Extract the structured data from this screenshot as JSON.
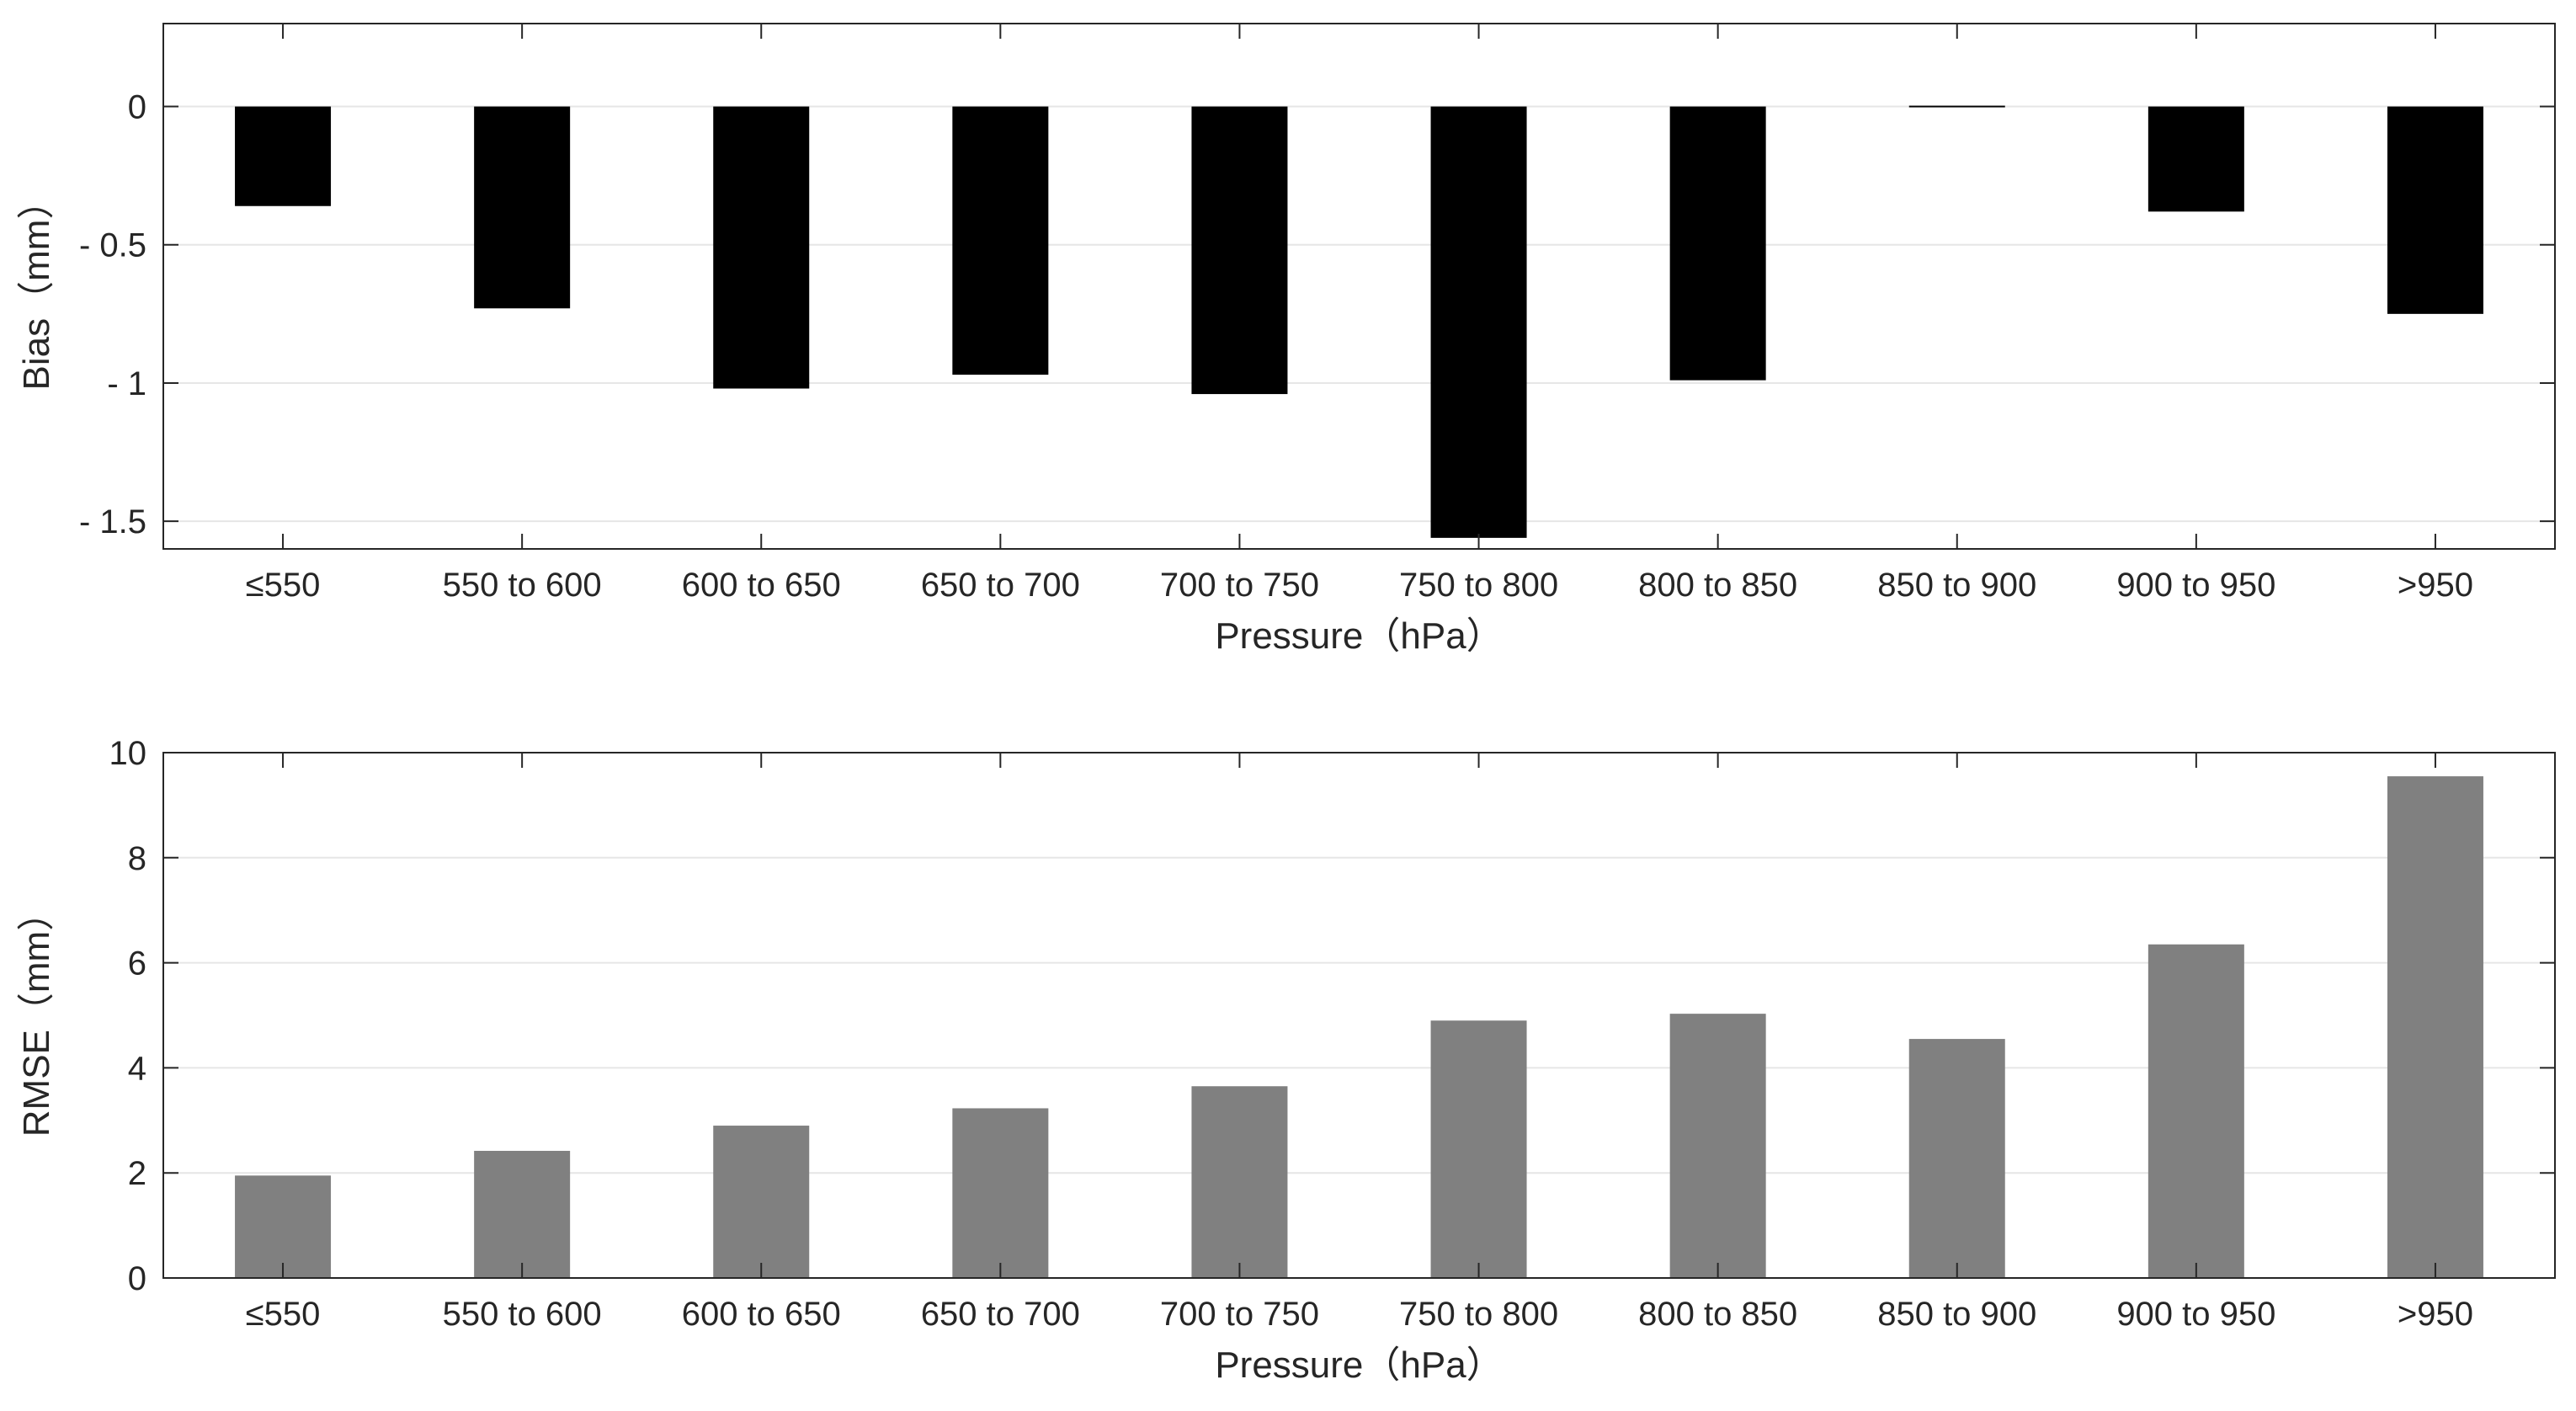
{
  "chart_data": [
    {
      "type": "bar",
      "title": "",
      "xlabel": "Pressure（hPa）",
      "ylabel": "Bias（mm）",
      "categories": [
        "≤550",
        "550 to 600",
        "600 to 650",
        "650 to 700",
        "700 to 750",
        "750 to 800",
        "800 to 850",
        "850 to 900",
        "900 to 950",
        ">950"
      ],
      "values": [
        -0.36,
        -0.73,
        -1.02,
        -0.97,
        -1.04,
        -1.56,
        -0.99,
        -0.005,
        -0.38,
        -0.75
      ],
      "ylim": [
        -1.6,
        0.3
      ],
      "yticks": [
        0,
        -0.5,
        -1,
        -1.5
      ],
      "ytick_labels": [
        "0",
        "- 0.5",
        "- 1",
        "- 1.5"
      ],
      "bar_color": "#000000",
      "grid": true
    },
    {
      "type": "bar",
      "title": "",
      "xlabel": "Pressure（hPa）",
      "ylabel": "RMSE（mm）",
      "categories": [
        "≤550",
        "550 to 600",
        "600 to 650",
        "650 to 700",
        "700 to 750",
        "750 to 800",
        "800 to 850",
        "850 to 900",
        "900 to 950",
        ">950"
      ],
      "values": [
        1.95,
        2.42,
        2.9,
        3.23,
        3.65,
        4.9,
        5.03,
        4.55,
        6.35,
        9.55
      ],
      "ylim": [
        0,
        10
      ],
      "yticks": [
        0,
        2,
        4,
        6,
        8,
        10
      ],
      "ytick_labels": [
        "0",
        "2",
        "4",
        "6",
        "8",
        "10"
      ],
      "bar_color": "#808080",
      "grid": true
    }
  ]
}
